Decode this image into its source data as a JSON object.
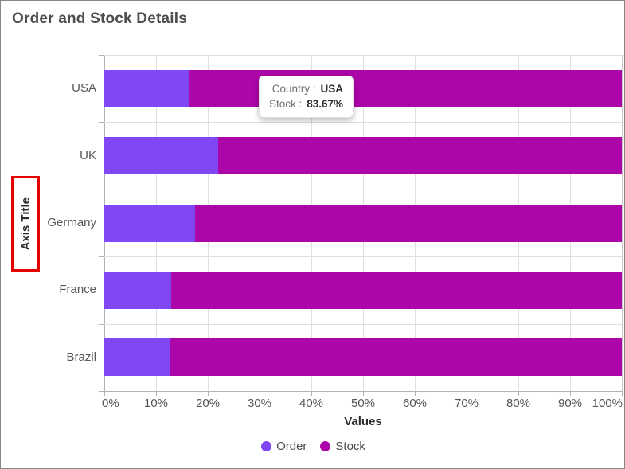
{
  "header": {
    "title": "Order and Stock Details"
  },
  "chart_data": {
    "type": "bar",
    "subtype": "stacked-100-percent",
    "orientation": "horizontal",
    "title": "Order and Stock Details",
    "categories": [
      "USA",
      "UK",
      "Germany",
      "France",
      "Brazil"
    ],
    "series": [
      {
        "name": "Order",
        "color": "#8048f4",
        "values": [
          16.33,
          22.0,
          17.5,
          12.9,
          12.6
        ]
      },
      {
        "name": "Stock",
        "color": "#ac06a8",
        "values": [
          83.67,
          78.0,
          82.5,
          87.1,
          87.4
        ]
      }
    ],
    "xlabel": "Values",
    "ylabel": "Axis Title",
    "xlim": [
      0,
      100
    ],
    "x_ticks": [
      "0%",
      "10%",
      "20%",
      "30%",
      "40%",
      "50%",
      "60%",
      "70%",
      "80%",
      "90%",
      "100%"
    ],
    "grid": true,
    "legend_position": "bottom"
  },
  "tooltip": {
    "rows": [
      {
        "label": "Country :",
        "value": "USA"
      },
      {
        "label": "Stock :",
        "value": "83.67%"
      }
    ]
  },
  "annotations": {
    "y_axis_title_highlight_color": "#e60000"
  }
}
